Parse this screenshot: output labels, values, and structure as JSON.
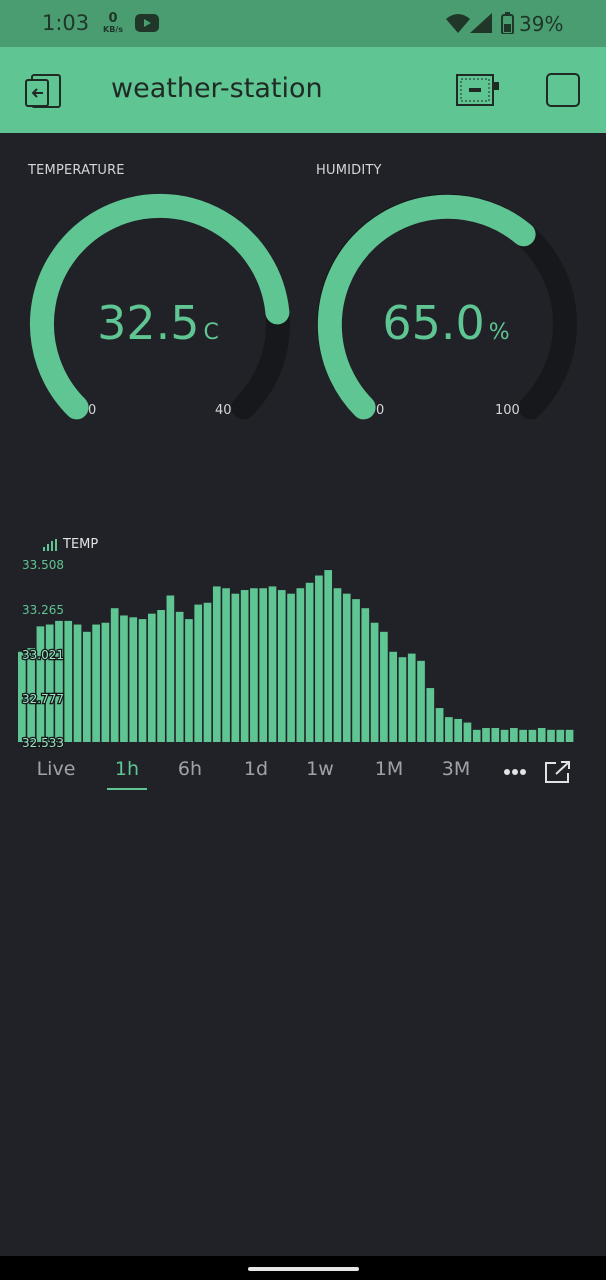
{
  "status_bar": {
    "time": "1:03",
    "net_speed_value": "0",
    "net_speed_unit": "KB/s",
    "battery_percent": "39%",
    "icons": [
      "youtube-icon",
      "wifi-icon",
      "signal-icon",
      "battery-icon"
    ]
  },
  "app_bar": {
    "title": "weather-station",
    "icons": [
      "exit-icon",
      "device-icon",
      "square-icon"
    ]
  },
  "gauges": [
    {
      "label": "TEMPERATURE",
      "value": "32.5",
      "unit": "C",
      "min": "0",
      "max": "40",
      "fraction": 0.8125
    },
    {
      "label": "HUMIDITY",
      "value": "65.0",
      "unit": "%",
      "min": "0",
      "max": "100",
      "fraction": 0.65
    }
  ],
  "colors": {
    "accent": "#5fc593",
    "background": "#212227",
    "track": "#17181b",
    "status_bar": "#4a9c71"
  },
  "chart": {
    "legend": "TEMP",
    "selected_range": "1h"
  },
  "chart_data": {
    "type": "bar",
    "title": "",
    "series": [
      {
        "name": "TEMP"
      }
    ],
    "yticks": [
      "33.508",
      "33.265",
      "33.021",
      "32.777",
      "32.533"
    ],
    "ylim": [
      32.533,
      33.508
    ],
    "values": [
      33.03,
      33.05,
      33.17,
      33.18,
      33.2,
      33.2,
      33.18,
      33.14,
      33.18,
      33.19,
      33.27,
      33.23,
      33.22,
      33.21,
      33.24,
      33.26,
      33.34,
      33.25,
      33.21,
      33.29,
      33.3,
      33.39,
      33.38,
      33.35,
      33.37,
      33.38,
      33.38,
      33.39,
      33.37,
      33.35,
      33.38,
      33.41,
      33.45,
      33.48,
      33.38,
      33.35,
      33.32,
      33.27,
      33.19,
      33.14,
      33.03,
      33.0,
      33.02,
      32.98,
      32.83,
      32.72,
      32.67,
      32.66,
      32.64,
      32.6,
      32.61,
      32.61,
      32.6,
      32.61,
      32.6,
      32.6,
      32.61,
      32.6,
      32.6,
      32.6
    ],
    "grid": false
  },
  "range_tabs": [
    "Live",
    "1h",
    "6h",
    "1d",
    "1w",
    "1M",
    "3M"
  ]
}
